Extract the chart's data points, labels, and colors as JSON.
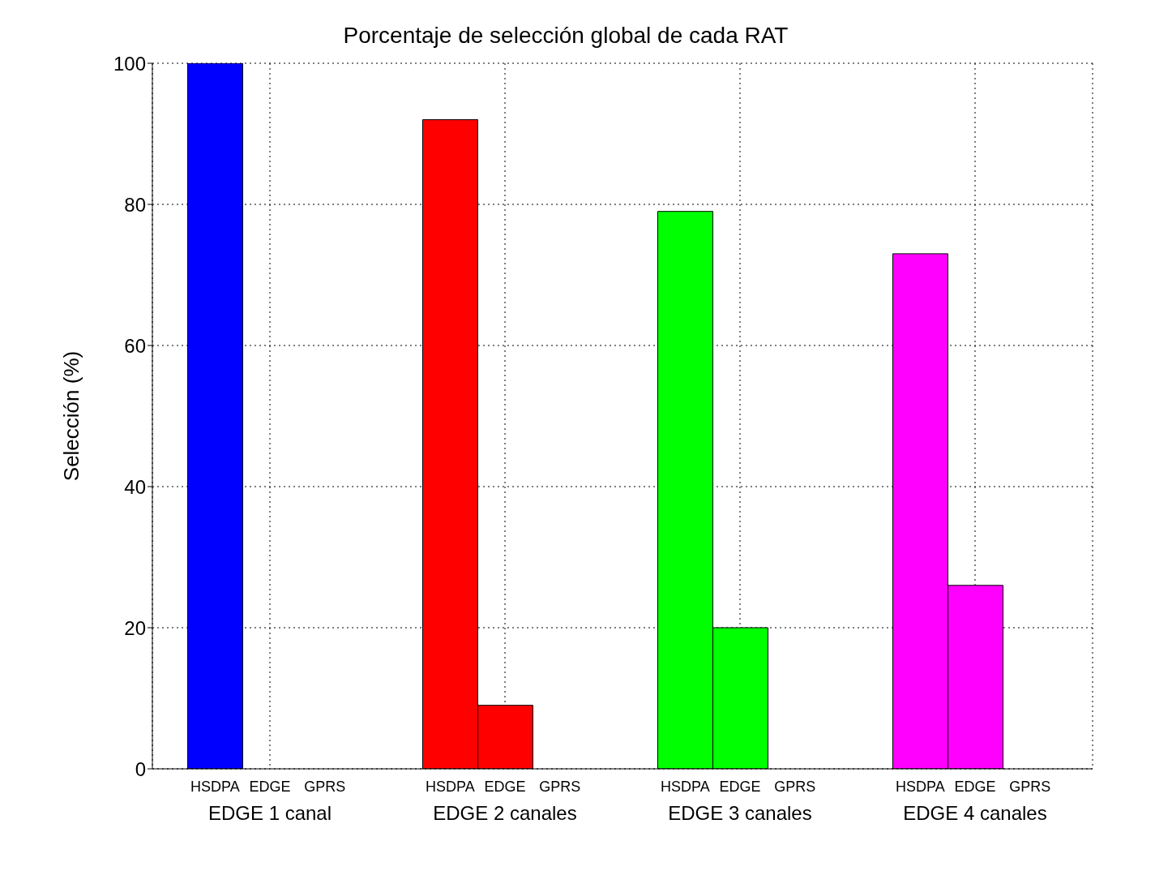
{
  "chart_data": {
    "type": "bar",
    "title": "Porcentaje de selección global de cada RAT",
    "ylabel": "Selección (%)",
    "categories": [
      "EDGE 1 canal",
      "EDGE 2 canales",
      "EDGE 3 canales",
      "EDGE 4 canales"
    ],
    "series": [
      {
        "name": "HSDPA",
        "colors": [
          "#0000ff",
          "#ff0000",
          "#00ff00",
          "#ff00ff"
        ],
        "values": [
          100,
          92,
          79,
          73
        ]
      },
      {
        "name": "EDGE",
        "colors": [
          "#0000ff",
          "#ff0000",
          "#00ff00",
          "#ff00ff"
        ],
        "values": [
          0,
          9,
          20,
          26
        ]
      },
      {
        "name": "GPRS",
        "colors": [
          "#0000ff",
          "#ff0000",
          "#00ff00",
          "#ff00ff"
        ],
        "values": [
          0,
          0,
          0,
          0
        ]
      }
    ],
    "ylim": [
      0,
      100
    ],
    "yticks": [
      0,
      20,
      40,
      60,
      80,
      100
    ],
    "grid": true
  }
}
